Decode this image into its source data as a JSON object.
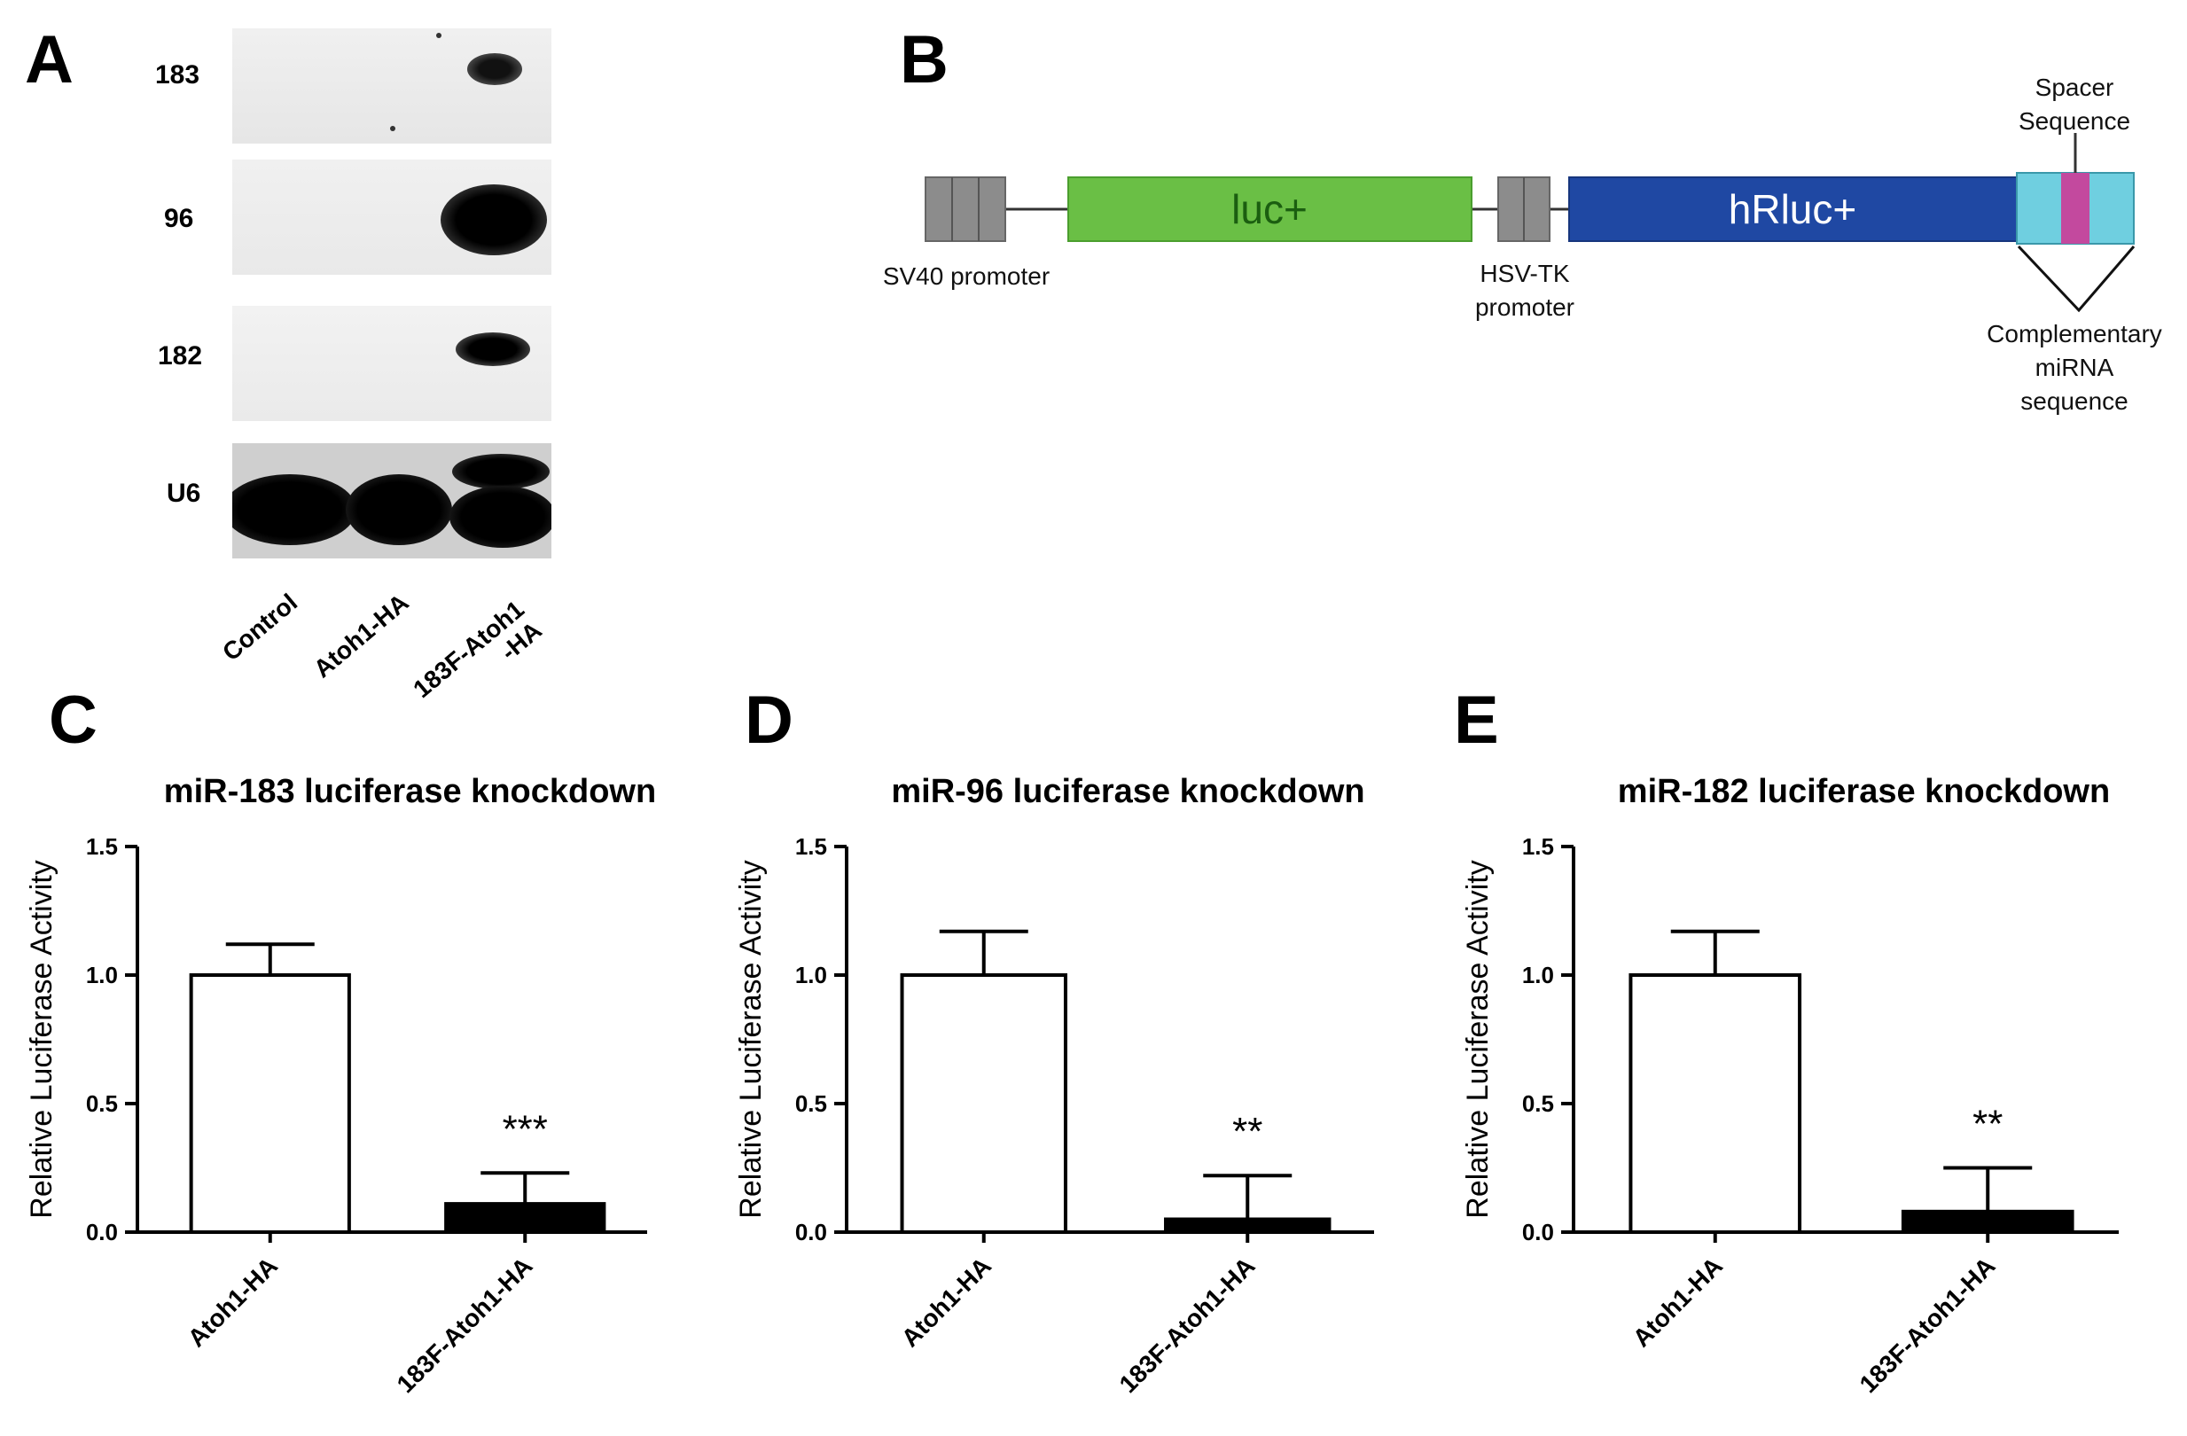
{
  "panels": {
    "A": "A",
    "B": "B",
    "C": "C",
    "D": "D",
    "E": "E"
  },
  "blot": {
    "rows": [
      "183",
      "96",
      "182",
      "U6"
    ],
    "lanes": [
      "Control",
      "Atoh1-HA",
      "183F-Atoh1\n-HA"
    ]
  },
  "construct": {
    "segments": {
      "luc": "luc+",
      "hrluc": "hRluc+"
    },
    "labels": {
      "sv40": "SV40 promoter",
      "hsvtk": "HSV-TK\npromoter",
      "spacer": "Spacer\nSequence",
      "complementary": "Complementary\nmiRNA\nsequence"
    },
    "colors": {
      "promoter": "#8c8c8c",
      "luc": "#6abf45",
      "hrluc": "#1f48a3",
      "utr": "#6fcfe0",
      "spacer": "#c3499e"
    }
  },
  "chart_data": [
    {
      "type": "bar",
      "title": "miR-183 luciferase knockdown",
      "ylabel": "Relative Luciferase Activity",
      "categories": [
        "Atoh1-HA",
        "183F-Atoh1-HA"
      ],
      "values": [
        1.0,
        0.11
      ],
      "errors": [
        0.12,
        0.12
      ],
      "fills": [
        "#ffffff",
        "#000000"
      ],
      "ylim": [
        0,
        1.5
      ],
      "yticks": [
        "0.0",
        "0.5",
        "1.0",
        "1.5"
      ],
      "significance": [
        "",
        "***"
      ]
    },
    {
      "type": "bar",
      "title": "miR-96 luciferase knockdown",
      "ylabel": "Relative Luciferase Activity",
      "categories": [
        "Atoh1-HA",
        "183F-Atoh1-HA"
      ],
      "values": [
        1.0,
        0.05
      ],
      "errors": [
        0.17,
        0.17
      ],
      "fills": [
        "#ffffff",
        "#000000"
      ],
      "ylim": [
        0,
        1.5
      ],
      "yticks": [
        "0.0",
        "0.5",
        "1.0",
        "1.5"
      ],
      "significance": [
        "",
        "**"
      ]
    },
    {
      "type": "bar",
      "title": "miR-182 luciferase knockdown",
      "ylabel": "Relative Luciferase Activity",
      "categories": [
        "Atoh1-HA",
        "183F-Atoh1-HA"
      ],
      "values": [
        1.0,
        0.08
      ],
      "errors": [
        0.17,
        0.17
      ],
      "fills": [
        "#ffffff",
        "#000000"
      ],
      "ylim": [
        0,
        1.5
      ],
      "yticks": [
        "0.0",
        "0.5",
        "1.0",
        "1.5"
      ],
      "significance": [
        "",
        "**"
      ]
    }
  ]
}
